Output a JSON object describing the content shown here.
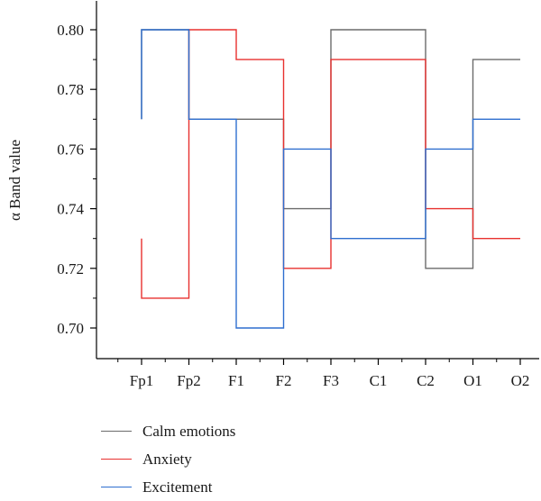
{
  "chart_data": {
    "type": "line",
    "step": true,
    "categories": [
      "Fp1",
      "Fp2",
      "F1",
      "F2",
      "F3",
      "C1",
      "C2",
      "O1",
      "O2"
    ],
    "ylabel": "α Band value",
    "xlabel": "",
    "ylim": [
      0.69,
      0.81
    ],
    "yticks": [
      0.7,
      0.72,
      0.74,
      0.76,
      0.78,
      0.8
    ],
    "ytick_labels": [
      "0.70",
      "0.72",
      "0.74",
      "0.76",
      "0.78",
      "0.80"
    ],
    "grid": false,
    "legend_position": "bottom",
    "series": [
      {
        "name": "Calm emotions",
        "color": "#6b6b6b",
        "values": [
          0.8,
          0.77,
          0.77,
          0.74,
          0.8,
          0.8,
          0.72,
          0.79,
          0.79
        ]
      },
      {
        "name": "Anxiety",
        "color": "#e8312f",
        "values": [
          0.71,
          0.8,
          0.79,
          0.72,
          0.79,
          0.79,
          0.74,
          0.73,
          0.73
        ]
      },
      {
        "name": "Excitement",
        "color": "#2f6fcf",
        "values": [
          0.8,
          0.77,
          0.7,
          0.76,
          0.73,
          0.73,
          0.76,
          0.77,
          0.77
        ]
      }
    ]
  }
}
